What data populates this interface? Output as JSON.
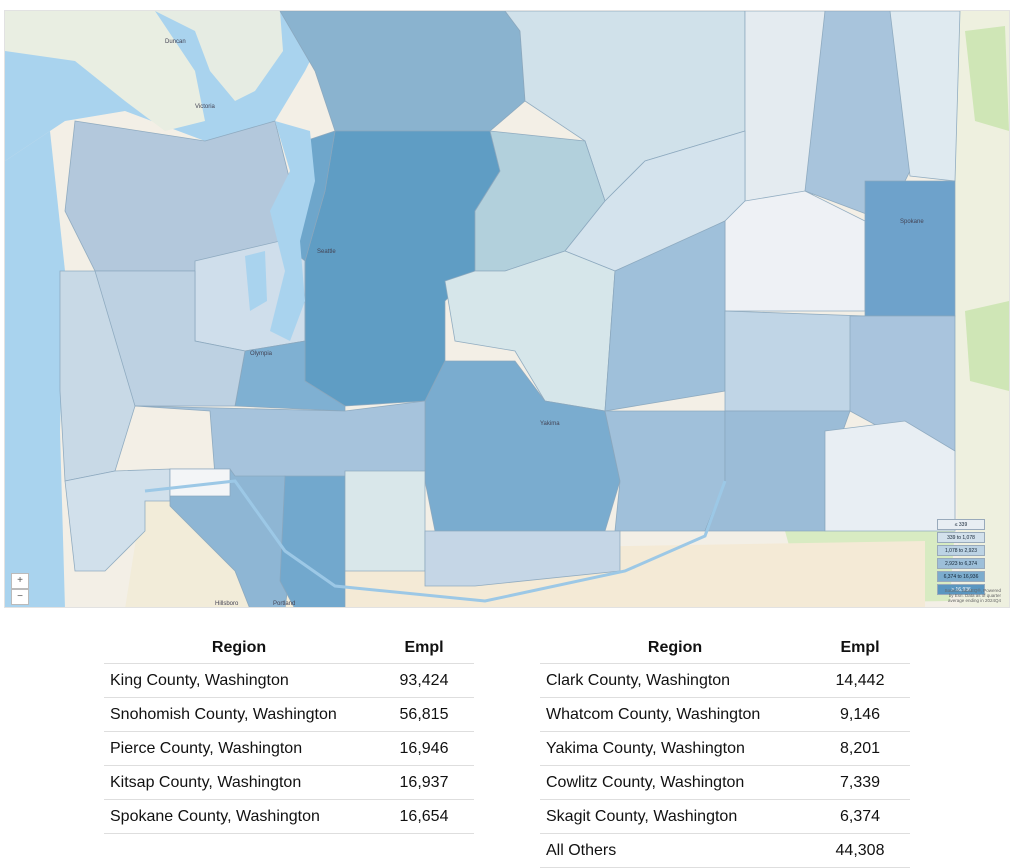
{
  "map": {
    "place_labels": [
      "Victoria",
      "Seattle",
      "Olympia",
      "Portland",
      "Hillsboro",
      "Spokane",
      "Yakima",
      "Duncan"
    ],
    "zoom_in": "+",
    "zoom_out": "−",
    "legend": [
      "≤ 339",
      "339 to 1,078",
      "1,078 to 2,923",
      "2,923 to 6,374",
      "6,374 to 16,936",
      "> 16,936"
    ],
    "legend_colors": [
      "#e8eef3",
      "#d3e1ec",
      "#bcd3e4",
      "#9dbfd9",
      "#7caccd",
      "#5a96c0"
    ],
    "attribution": "Source: JobsEQ®, Powered by Esri. Data as of quarter average ending in 2024Q4"
  },
  "tables": [
    {
      "headers": [
        "Region",
        "Empl"
      ],
      "rows": [
        [
          "King County, Washington",
          "93,424"
        ],
        [
          "Snohomish County, Washington",
          "56,815"
        ],
        [
          "Pierce County, Washington",
          "16,946"
        ],
        [
          "Kitsap County, Washington",
          "16,937"
        ],
        [
          "Spokane County, Washington",
          "16,654"
        ]
      ]
    },
    {
      "headers": [
        "Region",
        "Empl"
      ],
      "rows": [
        [
          "Clark County, Washington",
          "14,442"
        ],
        [
          "Whatcom County, Washington",
          "9,146"
        ],
        [
          "Yakima County, Washington",
          "8,201"
        ],
        [
          "Cowlitz County, Washington",
          "7,339"
        ],
        [
          "Skagit County, Washington",
          "6,374"
        ],
        [
          "All Others",
          "44,308"
        ]
      ]
    }
  ]
}
